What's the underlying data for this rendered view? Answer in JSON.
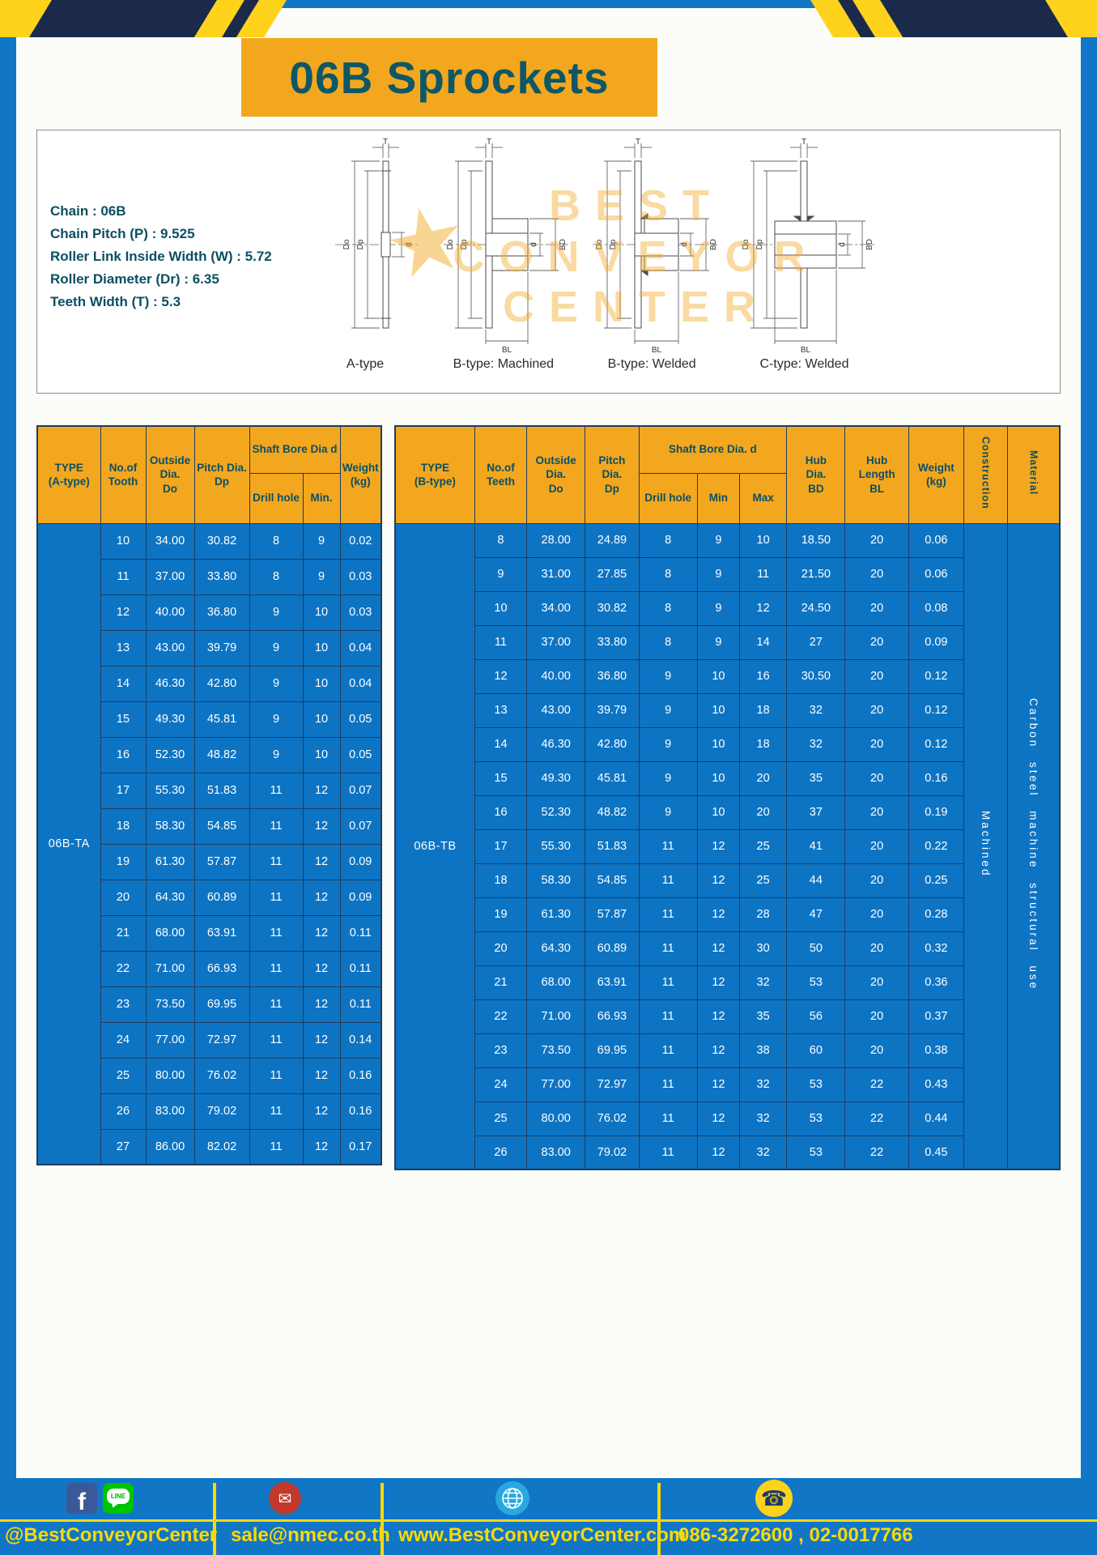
{
  "title": "06B Sprockets",
  "specs": [
    "Chain : 06B",
    "Chain Pitch (P) : 9.525",
    "Roller Link Inside Width (W) : 5.72",
    "Roller Diameter (Dr) : 6.35",
    "Teeth Width (T) : 5.3"
  ],
  "diagrams": {
    "watermark": [
      "BEST",
      "CONVEYOR",
      "CENTER"
    ],
    "logo_star": "★",
    "captions": [
      "A-type",
      "B-type: Machined",
      "B-type: Welded",
      "C-type: Welded"
    ],
    "dim_labels": {
      "T": "T",
      "Do": "Do",
      "Dp": "Dp",
      "d": "d",
      "BD": "BD",
      "BL": "BL"
    }
  },
  "table_a": {
    "type_label": "06B-TA",
    "headers": {
      "type": "TYPE\n(A-type)",
      "teeth": "No.of\nTooth",
      "outside": "Outside\nDia.\nDo",
      "pitch": "Pitch Dia.\nDp",
      "bore_group": "Shaft Bore Dia d",
      "drill": "Drill hole",
      "min": "Min.",
      "weight": "Weight\n(kg)"
    },
    "rows": [
      [
        "10",
        "34.00",
        "30.82",
        "8",
        "9",
        "0.02"
      ],
      [
        "11",
        "37.00",
        "33.80",
        "8",
        "9",
        "0.03"
      ],
      [
        "12",
        "40.00",
        "36.80",
        "9",
        "10",
        "0.03"
      ],
      [
        "13",
        "43.00",
        "39.79",
        "9",
        "10",
        "0.04"
      ],
      [
        "14",
        "46.30",
        "42.80",
        "9",
        "10",
        "0.04"
      ],
      [
        "15",
        "49.30",
        "45.81",
        "9",
        "10",
        "0.05"
      ],
      [
        "16",
        "52.30",
        "48.82",
        "9",
        "10",
        "0.05"
      ],
      [
        "17",
        "55.30",
        "51.83",
        "11",
        "12",
        "0.07"
      ],
      [
        "18",
        "58.30",
        "54.85",
        "11",
        "12",
        "0.07"
      ],
      [
        "19",
        "61.30",
        "57.87",
        "11",
        "12",
        "0.09"
      ],
      [
        "20",
        "64.30",
        "60.89",
        "11",
        "12",
        "0.09"
      ],
      [
        "21",
        "68.00",
        "63.91",
        "11",
        "12",
        "0.11"
      ],
      [
        "22",
        "71.00",
        "66.93",
        "11",
        "12",
        "0.11"
      ],
      [
        "23",
        "73.50",
        "69.95",
        "11",
        "12",
        "0.11"
      ],
      [
        "24",
        "77.00",
        "72.97",
        "11",
        "12",
        "0.14"
      ],
      [
        "25",
        "80.00",
        "76.02",
        "11",
        "12",
        "0.16"
      ],
      [
        "26",
        "83.00",
        "79.02",
        "11",
        "12",
        "0.16"
      ],
      [
        "27",
        "86.00",
        "82.02",
        "11",
        "12",
        "0.17"
      ]
    ]
  },
  "table_b": {
    "type_label": "06B-TB",
    "headers": {
      "type": "TYPE\n(B-type)",
      "teeth": "No.of\nTeeth",
      "outside": "Outside\nDia.\nDo",
      "pitch": "Pitch\nDia.\nDp",
      "bore_group": "Shaft Bore Dia. d",
      "drill": "Drill hole",
      "min": "Min",
      "max": "Max",
      "hub_dia": "Hub\nDia.\nBD",
      "hub_len": "Hub\nLength\nBL",
      "weight": "Weight\n(kg)",
      "construction": "Construction",
      "material": "Material"
    },
    "construction_value": "Machined",
    "material_value": "Carbon steel machine structural use",
    "rows": [
      [
        "8",
        "28.00",
        "24.89",
        "8",
        "9",
        "10",
        "18.50",
        "20",
        "0.06"
      ],
      [
        "9",
        "31.00",
        "27.85",
        "8",
        "9",
        "11",
        "21.50",
        "20",
        "0.06"
      ],
      [
        "10",
        "34.00",
        "30.82",
        "8",
        "9",
        "12",
        "24.50",
        "20",
        "0.08"
      ],
      [
        "11",
        "37.00",
        "33.80",
        "8",
        "9",
        "14",
        "27",
        "20",
        "0.09"
      ],
      [
        "12",
        "40.00",
        "36.80",
        "9",
        "10",
        "16",
        "30.50",
        "20",
        "0.12"
      ],
      [
        "13",
        "43.00",
        "39.79",
        "9",
        "10",
        "18",
        "32",
        "20",
        "0.12"
      ],
      [
        "14",
        "46.30",
        "42.80",
        "9",
        "10",
        "18",
        "32",
        "20",
        "0.12"
      ],
      [
        "15",
        "49.30",
        "45.81",
        "9",
        "10",
        "20",
        "35",
        "20",
        "0.16"
      ],
      [
        "16",
        "52.30",
        "48.82",
        "9",
        "10",
        "20",
        "37",
        "20",
        "0.19"
      ],
      [
        "17",
        "55.30",
        "51.83",
        "11",
        "12",
        "25",
        "41",
        "20",
        "0.22"
      ],
      [
        "18",
        "58.30",
        "54.85",
        "11",
        "12",
        "25",
        "44",
        "20",
        "0.25"
      ],
      [
        "19",
        "61.30",
        "57.87",
        "11",
        "12",
        "28",
        "47",
        "20",
        "0.28"
      ],
      [
        "20",
        "64.30",
        "60.89",
        "11",
        "12",
        "30",
        "50",
        "20",
        "0.32"
      ],
      [
        "21",
        "68.00",
        "63.91",
        "11",
        "12",
        "32",
        "53",
        "20",
        "0.36"
      ],
      [
        "22",
        "71.00",
        "66.93",
        "11",
        "12",
        "35",
        "56",
        "20",
        "0.37"
      ],
      [
        "23",
        "73.50",
        "69.95",
        "11",
        "12",
        "38",
        "60",
        "20",
        "0.38"
      ],
      [
        "24",
        "77.00",
        "72.97",
        "11",
        "12",
        "32",
        "53",
        "22",
        "0.43"
      ],
      [
        "25",
        "80.00",
        "76.02",
        "11",
        "12",
        "32",
        "53",
        "22",
        "0.44"
      ],
      [
        "26",
        "83.00",
        "79.02",
        "11",
        "12",
        "32",
        "53",
        "22",
        "0.45"
      ]
    ]
  },
  "footer": {
    "social_handle": "@BestConveyorCenter",
    "email": "sale@nmec.co.th",
    "website": "www.BestConveyorCenter.com",
    "phone": "086-3272600 , 02-0017766",
    "facebook_letter": "f",
    "line_label": "LINE",
    "icons": {
      "mail_glyph": "✉",
      "phone_glyph": "☎"
    }
  },
  "colors": {
    "page_blue": "#1176c5",
    "table_cell_blue": "#0d74c4",
    "accent_orange": "#f3a71e",
    "heading_teal": "#0d5767",
    "footer_yellow": "#ffd900",
    "ribbon_navy": "#1b2a4a"
  }
}
